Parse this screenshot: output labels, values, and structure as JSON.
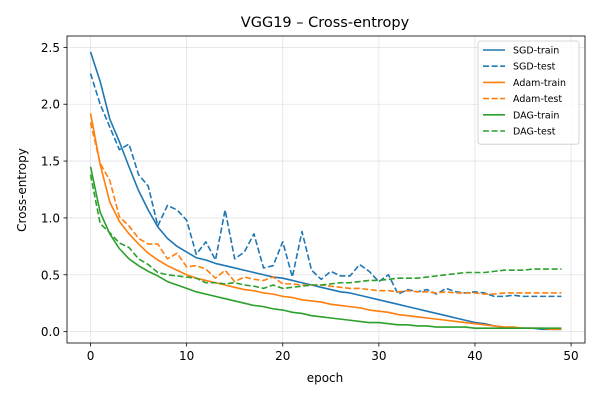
{
  "chart_data": {
    "type": "line",
    "title": "VGG19 – Cross-entropy",
    "xlabel": "epoch",
    "ylabel": "Cross-entropy",
    "xlim": [
      -2.45,
      51.45
    ],
    "ylim": [
      -0.1,
      2.6
    ],
    "xticks": [
      0,
      10,
      20,
      30,
      40,
      50
    ],
    "yticks": [
      0.0,
      0.5,
      1.0,
      1.5,
      2.0,
      2.5
    ],
    "grid": true,
    "legend_position": "top-right",
    "series": [
      {
        "name": "SGD-train",
        "color": "#1f77b4",
        "style": "solid",
        "values": [
          2.46,
          2.2,
          1.87,
          1.67,
          1.45,
          1.24,
          1.07,
          0.92,
          0.82,
          0.75,
          0.7,
          0.65,
          0.63,
          0.6,
          0.58,
          0.56,
          0.54,
          0.52,
          0.5,
          0.48,
          0.47,
          0.45,
          0.43,
          0.41,
          0.39,
          0.37,
          0.35,
          0.34,
          0.32,
          0.3,
          0.28,
          0.26,
          0.24,
          0.22,
          0.2,
          0.18,
          0.16,
          0.14,
          0.12,
          0.1,
          0.08,
          0.07,
          0.05,
          0.04,
          0.03,
          0.03,
          0.03,
          0.02,
          0.02,
          0.02
        ]
      },
      {
        "name": "SGD-test",
        "color": "#1f77b4",
        "style": "dashed",
        "values": [
          2.27,
          2.0,
          1.8,
          1.6,
          1.65,
          1.38,
          1.28,
          0.93,
          1.11,
          1.07,
          0.98,
          0.68,
          0.79,
          0.63,
          1.07,
          0.64,
          0.7,
          0.86,
          0.56,
          0.58,
          0.79,
          0.48,
          0.88,
          0.54,
          0.46,
          0.53,
          0.49,
          0.49,
          0.59,
          0.53,
          0.44,
          0.5,
          0.33,
          0.37,
          0.35,
          0.37,
          0.33,
          0.38,
          0.35,
          0.34,
          0.35,
          0.34,
          0.31,
          0.31,
          0.32,
          0.31,
          0.31,
          0.31,
          0.31,
          0.31
        ]
      },
      {
        "name": "Adam-train",
        "color": "#ff7f0e",
        "style": "solid",
        "values": [
          1.92,
          1.47,
          1.14,
          0.97,
          0.86,
          0.77,
          0.69,
          0.63,
          0.58,
          0.54,
          0.5,
          0.47,
          0.45,
          0.43,
          0.41,
          0.39,
          0.37,
          0.36,
          0.34,
          0.33,
          0.31,
          0.3,
          0.28,
          0.27,
          0.26,
          0.24,
          0.23,
          0.22,
          0.21,
          0.19,
          0.18,
          0.17,
          0.15,
          0.14,
          0.13,
          0.12,
          0.11,
          0.1,
          0.09,
          0.08,
          0.07,
          0.06,
          0.05,
          0.04,
          0.04,
          0.03,
          0.03,
          0.03,
          0.02,
          0.02
        ]
      },
      {
        "name": "Adam-test",
        "color": "#ff7f0e",
        "style": "dashed",
        "values": [
          1.84,
          1.48,
          1.33,
          1.01,
          0.93,
          0.82,
          0.77,
          0.77,
          0.64,
          0.69,
          0.57,
          0.58,
          0.55,
          0.47,
          0.54,
          0.44,
          0.48,
          0.46,
          0.45,
          0.48,
          0.42,
          0.42,
          0.41,
          0.41,
          0.41,
          0.4,
          0.39,
          0.38,
          0.38,
          0.37,
          0.36,
          0.36,
          0.35,
          0.36,
          0.35,
          0.35,
          0.34,
          0.35,
          0.34,
          0.34,
          0.34,
          0.33,
          0.33,
          0.34,
          0.34,
          0.34,
          0.34,
          0.34,
          0.34,
          0.34
        ]
      },
      {
        "name": "DAG-train",
        "color": "#2ca02c",
        "style": "solid",
        "values": [
          1.45,
          1.05,
          0.86,
          0.73,
          0.64,
          0.58,
          0.53,
          0.49,
          0.44,
          0.41,
          0.38,
          0.35,
          0.33,
          0.31,
          0.29,
          0.27,
          0.25,
          0.23,
          0.22,
          0.2,
          0.19,
          0.17,
          0.16,
          0.14,
          0.13,
          0.12,
          0.11,
          0.1,
          0.09,
          0.08,
          0.08,
          0.07,
          0.06,
          0.06,
          0.05,
          0.05,
          0.04,
          0.04,
          0.04,
          0.04,
          0.03,
          0.03,
          0.03,
          0.03,
          0.03,
          0.03,
          0.03,
          0.03,
          0.03,
          0.03
        ]
      },
      {
        "name": "DAG-test",
        "color": "#2ca02c",
        "style": "dashed",
        "values": [
          1.38,
          0.95,
          0.87,
          0.78,
          0.74,
          0.64,
          0.59,
          0.52,
          0.5,
          0.49,
          0.48,
          0.47,
          0.43,
          0.43,
          0.42,
          0.43,
          0.41,
          0.4,
          0.38,
          0.41,
          0.38,
          0.39,
          0.4,
          0.41,
          0.41,
          0.42,
          0.43,
          0.43,
          0.44,
          0.45,
          0.45,
          0.46,
          0.47,
          0.47,
          0.47,
          0.48,
          0.49,
          0.5,
          0.51,
          0.52,
          0.52,
          0.52,
          0.53,
          0.54,
          0.54,
          0.54,
          0.55,
          0.55,
          0.55,
          0.55
        ]
      }
    ]
  }
}
